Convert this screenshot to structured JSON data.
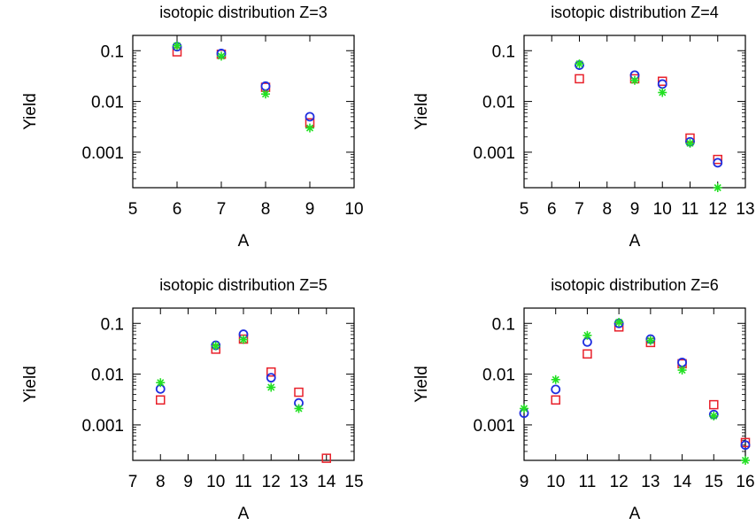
{
  "legend": [
    {
      "marker": "square",
      "color": "#e8202a"
    },
    {
      "marker": "circle",
      "color": "#1f2ee0"
    },
    {
      "marker": "asterisk",
      "color": "#22e022"
    }
  ],
  "chart_data": [
    {
      "type": "scatter",
      "title": "isotopic distribution Z=3",
      "xlabel": "A",
      "ylabel": "Yield",
      "xlim": [
        5,
        10
      ],
      "ylim": [
        0.0002,
        0.2
      ],
      "yscale": "log",
      "xticks": [
        "5",
        "6",
        "7",
        "8",
        "9",
        "10"
      ],
      "yticks": [
        "0.1",
        "0.01",
        "0.001"
      ],
      "series": [
        {
          "marker": "square",
          "color": "#e8202a",
          "points": [
            [
              6,
              0.095
            ],
            [
              7,
              0.085
            ],
            [
              8,
              0.019
            ],
            [
              9,
              0.0038
            ]
          ]
        },
        {
          "marker": "circle",
          "color": "#1f2ee0",
          "points": [
            [
              6,
              0.12
            ],
            [
              7,
              0.088
            ],
            [
              8,
              0.02
            ],
            [
              9,
              0.005
            ]
          ]
        },
        {
          "marker": "asterisk",
          "color": "#22e022",
          "points": [
            [
              6,
              0.125
            ],
            [
              7,
              0.078
            ],
            [
              8,
              0.014
            ],
            [
              9,
              0.003
            ]
          ]
        }
      ]
    },
    {
      "type": "scatter",
      "title": "isotopic distribution Z=4",
      "xlabel": "A",
      "ylabel": "Yield",
      "xlim": [
        5,
        13
      ],
      "ylim": [
        0.0002,
        0.2
      ],
      "yscale": "log",
      "xticks": [
        "5",
        "6",
        "7",
        "8",
        "9",
        "10",
        "11",
        "12",
        "13"
      ],
      "xtick_values": [
        5,
        6,
        7,
        8,
        9,
        10,
        11,
        12,
        13
      ],
      "xtick_display": [
        "5",
        "6",
        "7",
        "8",
        "9",
        "10",
        "11",
        "12",
        "13"
      ],
      "series": [
        {
          "marker": "square",
          "color": "#e8202a",
          "points": [
            [
              7,
              0.028
            ],
            [
              9,
              0.028
            ],
            [
              10,
              0.025
            ],
            [
              11,
              0.0019
            ],
            [
              12,
              0.00072
            ]
          ]
        },
        {
          "marker": "circle",
          "color": "#1f2ee0",
          "points": [
            [
              7,
              0.052
            ],
            [
              9,
              0.033
            ],
            [
              10,
              0.022
            ],
            [
              11,
              0.0016
            ],
            [
              12,
              0.00062
            ]
          ]
        },
        {
          "marker": "asterisk",
          "color": "#22e022",
          "points": [
            [
              7,
              0.055
            ],
            [
              9,
              0.026
            ],
            [
              10,
              0.015
            ],
            [
              11,
              0.0015
            ],
            [
              12,
              0.0002
            ]
          ]
        }
      ]
    },
    {
      "type": "scatter",
      "title": "isotopic distribution Z=5",
      "xlabel": "A",
      "ylabel": "Yield",
      "xlim": [
        7,
        15
      ],
      "ylim": [
        0.0002,
        0.2
      ],
      "yscale": "log",
      "xticks": [
        "7",
        "8",
        "9",
        "10",
        "11",
        "12",
        "13",
        "14",
        "15"
      ],
      "series": [
        {
          "marker": "square",
          "color": "#e8202a",
          "points": [
            [
              8,
              0.0031
            ],
            [
              10,
              0.031
            ],
            [
              11,
              0.049
            ],
            [
              12,
              0.011
            ],
            [
              13,
              0.0044
            ],
            [
              14,
              0.00022
            ]
          ]
        },
        {
          "marker": "circle",
          "color": "#1f2ee0",
          "points": [
            [
              8,
              0.0051
            ],
            [
              10,
              0.037
            ],
            [
              11,
              0.061
            ],
            [
              12,
              0.0085
            ],
            [
              13,
              0.0027
            ]
          ]
        },
        {
          "marker": "asterisk",
          "color": "#22e022",
          "points": [
            [
              8,
              0.0068
            ],
            [
              10,
              0.036
            ],
            [
              11,
              0.048
            ],
            [
              12,
              0.0055
            ],
            [
              13,
              0.0021
            ]
          ]
        }
      ]
    },
    {
      "type": "scatter",
      "title": "isotopic distribution Z=6",
      "xlabel": "A",
      "ylabel": "Yield",
      "xlim": [
        9,
        16
      ],
      "ylim": [
        0.0002,
        0.2
      ],
      "yscale": "log",
      "xticks": [
        "9",
        "10",
        "11",
        "12",
        "13",
        "14",
        "15",
        "16"
      ],
      "series": [
        {
          "marker": "square",
          "color": "#e8202a",
          "points": [
            [
              10,
              0.0031
            ],
            [
              11,
              0.025
            ],
            [
              12,
              0.085
            ],
            [
              13,
              0.042
            ],
            [
              14,
              0.016
            ],
            [
              15,
              0.0025
            ],
            [
              16,
              0.00045
            ]
          ]
        },
        {
          "marker": "circle",
          "color": "#1f2ee0",
          "points": [
            [
              9,
              0.0017
            ],
            [
              10,
              0.005
            ],
            [
              11,
              0.043
            ],
            [
              12,
              0.1
            ],
            [
              13,
              0.049
            ],
            [
              14,
              0.017
            ],
            [
              15,
              0.0016
            ],
            [
              16,
              0.0004
            ]
          ]
        },
        {
          "marker": "asterisk",
          "color": "#22e022",
          "points": [
            [
              9,
              0.0021
            ],
            [
              10,
              0.0078
            ],
            [
              11,
              0.058
            ],
            [
              12,
              0.105
            ],
            [
              13,
              0.046
            ],
            [
              14,
              0.012
            ],
            [
              15,
              0.0015
            ],
            [
              16,
              0.0002
            ]
          ]
        }
      ]
    }
  ]
}
